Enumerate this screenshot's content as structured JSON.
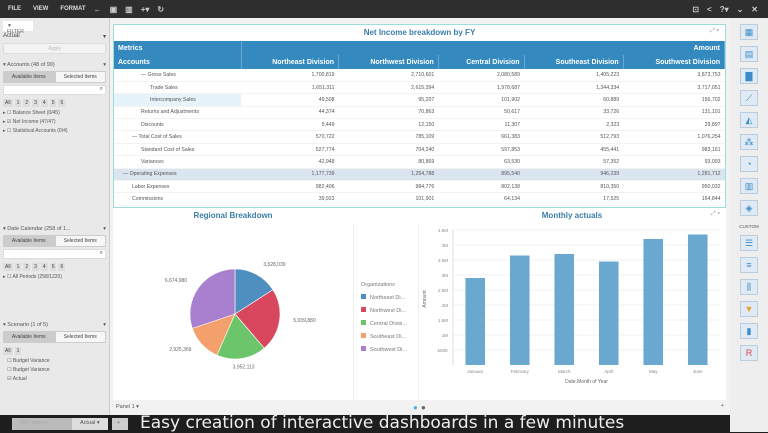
{
  "menu": {
    "file": "FILE",
    "view": "VIEW",
    "format": "FORMAT"
  },
  "filter": {
    "tab": "FILTER",
    "scenario_value": "Actual",
    "apply": "Apply",
    "sections": [
      {
        "title": "Accounts (48 of 99)",
        "available": "Available Items",
        "selected": "Selected Items",
        "levels": [
          "All",
          "1",
          "2",
          "3",
          "4",
          "5",
          "6"
        ],
        "items": [
          "Balance Sheet (0/45)",
          "Net Income (47/47)",
          "Statistical Accounts (0/4)"
        ],
        "checked": [
          false,
          true,
          false
        ]
      },
      {
        "title": "Date Calendar (258 of 1...",
        "available": "Available Items",
        "selected": "Selected Items",
        "levels": [
          "All",
          "1",
          "2",
          "3",
          "4",
          "5",
          "6"
        ],
        "items": [
          "All Periods (258/1220)"
        ],
        "checked": [
          false
        ]
      },
      {
        "title": "Scenario (1 of 5)",
        "available": "Available Items",
        "selected": "Selected Items",
        "levels": [
          "All",
          "1"
        ],
        "items": [
          "Budget Variance",
          "Budget Variance",
          "Actual"
        ],
        "checked": [
          false,
          false,
          true
        ]
      }
    ]
  },
  "table": {
    "title": "Net Income breakdown by FY",
    "metrics": "Metrics",
    "amount": "Amount",
    "accounts": "Accounts",
    "columns": [
      "Northeast Division",
      "Northwest Division",
      "Central Division",
      "Southeast Division",
      "Southwest Division"
    ],
    "rows": [
      {
        "label": "— Gross Sales",
        "indent": 3,
        "values": [
          "1,700,819",
          "2,710,601",
          "2,080,589",
          "1,405,223",
          "3,873,753"
        ]
      },
      {
        "label": "Trade Sales",
        "indent": 4,
        "values": [
          "1,651,311",
          "2,615,394",
          "1,978,687",
          "1,344,334",
          "3,717,051"
        ]
      },
      {
        "label": "Intercompany Sales",
        "indent": 4,
        "values": [
          "49,508",
          "95,207",
          "101,902",
          "60,889",
          "156,702"
        ]
      },
      {
        "label": "Returns and Adjustments",
        "indent": 3,
        "values": [
          "44,374",
          "70,863",
          "50,617",
          "33,726",
          "131,101"
        ]
      },
      {
        "label": "Discounts",
        "indent": 3,
        "values": [
          "5,449",
          "12,150",
          "11,307",
          "2,323",
          "29,897"
        ]
      },
      {
        "label": "— Total Cost of Sales",
        "indent": 2,
        "values": [
          "570,722",
          "785,109",
          "661,383",
          "512,793",
          "1,076,254"
        ]
      },
      {
        "label": "Standard Cost of Sales",
        "indent": 3,
        "values": [
          "527,774",
          "704,240",
          "597,853",
          "455,441",
          "983,161"
        ]
      },
      {
        "label": "Variances",
        "indent": 3,
        "values": [
          "42,948",
          "80,869",
          "63,530",
          "57,352",
          "93,093"
        ]
      },
      {
        "label": "— Operating Expenses",
        "indent": 1,
        "values": [
          "1,177,739",
          "1,254,788",
          "895,540",
          "946,239",
          "1,281,712"
        ]
      },
      {
        "label": "Labor Expenses",
        "indent": 2,
        "values": [
          "982,406",
          "984,776",
          "802,138",
          "810,350",
          "950,032"
        ]
      },
      {
        "label": "Commissions",
        "indent": 2,
        "values": [
          "39,923",
          "101,901",
          "64,134",
          "17,525",
          "164,844"
        ]
      }
    ]
  },
  "chart_data": [
    {
      "type": "pie",
      "title": "Regional Breakdown",
      "legend_title": "Organizations",
      "legend_position": "right",
      "labels": [
        "Northeast Di...",
        "Northwest Di...",
        "Central Divisi...",
        "Southeast Di...",
        "Southwest Di..."
      ],
      "values": [
        3528039,
        5039880,
        3952113,
        2925369,
        6674980
      ],
      "value_labels": [
        "3,528,039",
        "5,039,880",
        "3,952,113",
        "2,925,369",
        "6,674,980"
      ],
      "colors": [
        "#4f8fc0",
        "#d9475f",
        "#6cc56a",
        "#f3a06c",
        "#a97fcf"
      ]
    },
    {
      "type": "bar",
      "title": "Monthly actuals",
      "xlabel": "Date.Month of Year",
      "ylabel": "Amount",
      "categories": [
        "January",
        "February",
        "March",
        "April",
        "May",
        "June"
      ],
      "values": [
        2900000,
        3650000,
        3700000,
        3450000,
        4200000,
        4350000
      ],
      "ylim": [
        0,
        4500000
      ],
      "yticks": [
        "500K",
        "1M",
        "1.5M",
        "2M",
        "2.5M",
        "3M",
        "3.5M",
        "4M",
        "4.5M"
      ],
      "grid": true,
      "color": "#6aa8cf"
    }
  ],
  "footer": {
    "panel": "Panel 1 ▾"
  },
  "right": {
    "custom": "CUSTOM"
  },
  "sheets": [
    "Net Income",
    "Actual ▾",
    "+"
  ],
  "caption": "Easy creation of interactive dashboards in a few minutes"
}
